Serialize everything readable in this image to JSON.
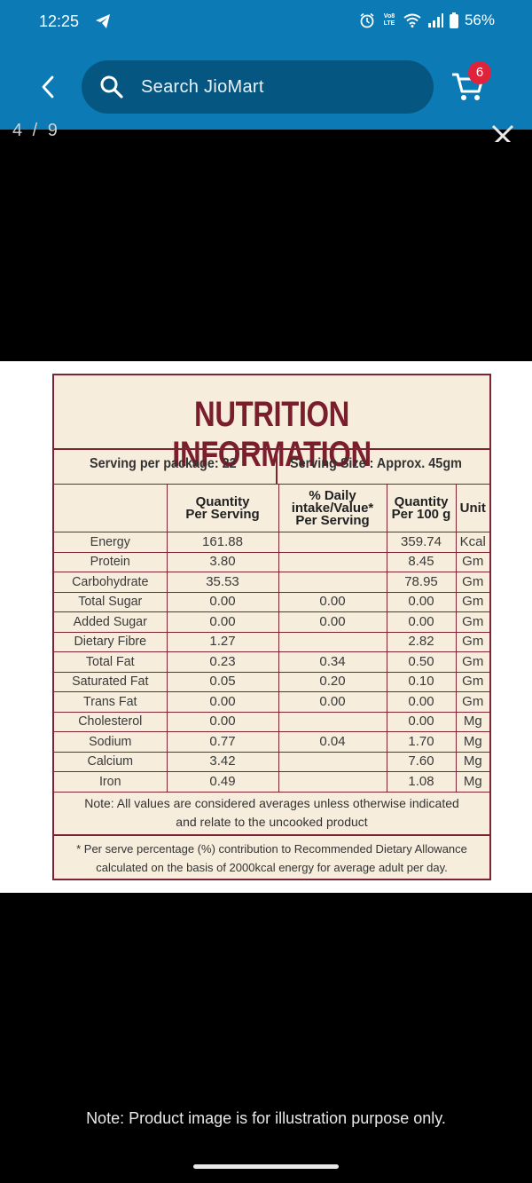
{
  "status_bar": {
    "time": "12:25",
    "battery": "56%",
    "volte": "Vo8 LTE"
  },
  "search": {
    "placeholder": "Search JioMart"
  },
  "cart": {
    "count": "6"
  },
  "viewer": {
    "pager": "4 / 9"
  },
  "label": {
    "title": "NUTRITION INFORMATION",
    "serving_per_package": "Serving per package: 22",
    "serving_size": "Serving Size : Approx. 45gm",
    "headers": [
      "",
      "Quantity Per Serving",
      "% Daily intake/Value* Per Serving",
      "Quantity Per 100 g",
      "Unit"
    ],
    "rows": [
      [
        "Energy",
        "161.88",
        "",
        "359.74",
        "Kcal"
      ],
      [
        "Protein",
        "3.80",
        "",
        "8.45",
        "Gm"
      ],
      [
        "Carbohydrate",
        "35.53",
        "",
        "78.95",
        "Gm"
      ],
      [
        "Total Sugar",
        "0.00",
        "0.00",
        "0.00",
        "Gm"
      ],
      [
        "Added Sugar",
        "0.00",
        "0.00",
        "0.00",
        "Gm"
      ],
      [
        "Dietary Fibre",
        "1.27",
        "",
        "2.82",
        "Gm"
      ],
      [
        "Total Fat",
        "0.23",
        "0.34",
        "0.50",
        "Gm"
      ],
      [
        "Saturated Fat",
        "0.05",
        "0.20",
        "0.10",
        "Gm"
      ],
      [
        "Trans Fat",
        "0.00",
        "0.00",
        "0.00",
        "Gm"
      ],
      [
        "Cholesterol",
        "0.00",
        "",
        "0.00",
        "Mg"
      ],
      [
        "Sodium",
        "0.77",
        "0.04",
        "1.70",
        "Mg"
      ],
      [
        "Calcium",
        "3.42",
        "",
        "7.60",
        "Mg"
      ],
      [
        "Iron",
        "0.49",
        "",
        "1.08",
        "Mg"
      ]
    ],
    "note1_line1": "Note: All values are considered averages unless otherwise indicated",
    "note1_line2": "and relate to the uncooked product",
    "note2_line1": "* Per serve percentage (%) contribution to Recommended Dietary Allowance",
    "note2_line2": "calculated on the basis of 2000kcal energy for average adult per day."
  },
  "footer": {
    "note": "Note: Product image is for illustration purpose only."
  },
  "colors": {
    "app_bar": "#0c7bb5",
    "search_bg": "#065682",
    "badge": "#e0223b",
    "label_border": "#7e2333",
    "label_bg": "#f6eddc"
  }
}
